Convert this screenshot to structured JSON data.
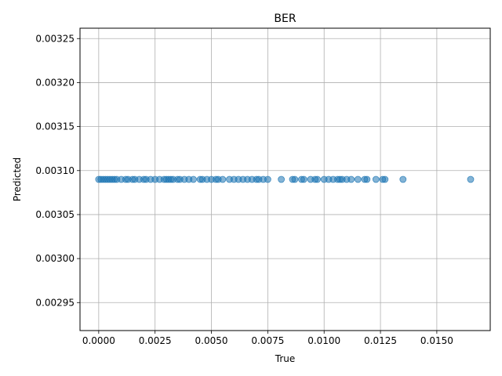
{
  "chart_data": {
    "type": "scatter",
    "title": "BER",
    "xlabel": "True",
    "ylabel": "Predicted",
    "xlim": [
      -0.00083,
      0.01737
    ],
    "ylim": [
      0.0029182,
      0.0032618
    ],
    "xticks": [
      0.0,
      0.0025,
      0.005,
      0.0075,
      0.01,
      0.0125,
      0.015
    ],
    "xtick_labels": [
      "0.0000",
      "0.0025",
      "0.0050",
      "0.0075",
      "0.0100",
      "0.0125",
      "0.0150"
    ],
    "yticks": [
      0.00295,
      0.003,
      0.00305,
      0.0031,
      0.00315,
      0.0032,
      0.00325
    ],
    "ytick_labels": [
      "0.00295",
      "0.00300",
      "0.00305",
      "0.00310",
      "0.00315",
      "0.00320",
      "0.00325"
    ],
    "grid": true,
    "marker_color": "#1f77b4",
    "series": [
      {
        "x": [
          0.0,
          0.0001,
          0.0002,
          0.0003,
          0.0004,
          0.0005,
          0.0006,
          0.0007,
          0.0008,
          0.001,
          0.0012,
          0.0013,
          0.0015,
          0.0016,
          0.0018,
          0.002,
          0.0021,
          0.0023,
          0.0025,
          0.0027,
          0.0029,
          0.003,
          0.0031,
          0.0032,
          0.0033,
          0.0035,
          0.0036,
          0.0038,
          0.004,
          0.0042,
          0.0045,
          0.0046,
          0.0048,
          0.005,
          0.0052,
          0.0053,
          0.0055,
          0.0058,
          0.006,
          0.0062,
          0.0064,
          0.0066,
          0.0068,
          0.007,
          0.0071,
          0.0073,
          0.0075,
          0.0081,
          0.0086,
          0.0087,
          0.009,
          0.0091,
          0.0094,
          0.0096,
          0.0097,
          0.01,
          0.0102,
          0.0104,
          0.0106,
          0.0107,
          0.0108,
          0.011,
          0.0112,
          0.0115,
          0.0118,
          0.0119,
          0.0123,
          0.0126,
          0.0127,
          0.0135,
          0.0165
        ],
        "y": [
          0.00309,
          0.00309,
          0.00309,
          0.00309,
          0.00309,
          0.00309,
          0.00309,
          0.00309,
          0.00309,
          0.00309,
          0.00309,
          0.00309,
          0.00309,
          0.00309,
          0.00309,
          0.00309,
          0.00309,
          0.00309,
          0.00309,
          0.00309,
          0.00309,
          0.00309,
          0.00309,
          0.00309,
          0.00309,
          0.00309,
          0.00309,
          0.00309,
          0.00309,
          0.00309,
          0.00309,
          0.00309,
          0.00309,
          0.00309,
          0.00309,
          0.00309,
          0.00309,
          0.00309,
          0.00309,
          0.00309,
          0.00309,
          0.00309,
          0.00309,
          0.00309,
          0.00309,
          0.00309,
          0.00309,
          0.00309,
          0.00309,
          0.00309,
          0.00309,
          0.00309,
          0.00309,
          0.00309,
          0.00309,
          0.00309,
          0.00309,
          0.00309,
          0.00309,
          0.00309,
          0.00309,
          0.00309,
          0.00309,
          0.00309,
          0.00309,
          0.00309,
          0.00309,
          0.00309,
          0.00309,
          0.00309,
          0.00309
        ]
      }
    ]
  }
}
